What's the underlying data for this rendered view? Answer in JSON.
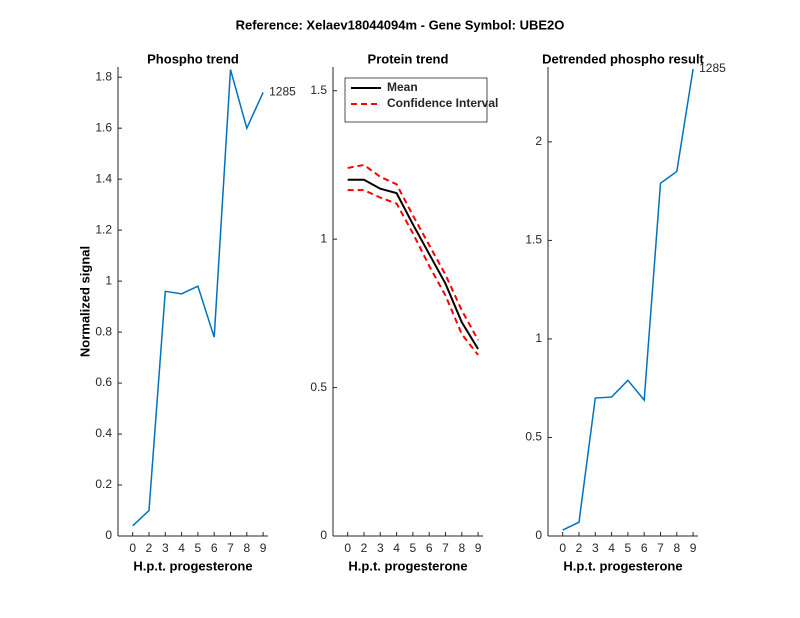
{
  "title": "Reference:  Xelaev18044094m - Gene Symbol:  UBE2O",
  "chart_data": [
    {
      "type": "line",
      "title": "Phospho trend",
      "xlabel": "H.p.t. progesterone",
      "ylabel": "Normalized signal",
      "categories": [
        "0",
        "2",
        "3",
        "4",
        "5",
        "6",
        "7",
        "8",
        "9"
      ],
      "series": [
        {
          "name": "1285",
          "color": "#0072bd",
          "values": [
            0.04,
            0.1,
            0.96,
            0.95,
            0.98,
            0.78,
            1.83,
            1.6,
            1.74
          ]
        }
      ],
      "annotation": "1285",
      "ylim": [
        0,
        1.84
      ],
      "yticks": [
        0,
        0.2,
        0.4,
        0.6,
        0.8,
        1,
        1.2,
        1.4,
        1.6,
        1.8
      ]
    },
    {
      "type": "line",
      "title": "Protein trend",
      "xlabel": "H.p.t. progesterone",
      "categories": [
        "0",
        "2",
        "3",
        "4",
        "5",
        "6",
        "7",
        "8",
        "9"
      ],
      "series": [
        {
          "name": "Mean",
          "color": "#000000",
          "values": [
            1.2,
            1.2,
            1.17,
            1.155,
            1.05,
            0.95,
            0.85,
            0.72,
            0.63
          ]
        },
        {
          "name": "Confidence Interval",
          "color": "#ff0000",
          "dashed": true,
          "values": [
            1.24,
            1.25,
            1.21,
            1.185,
            1.08,
            0.98,
            0.88,
            0.76,
            0.66
          ],
          "lower": [
            1.165,
            1.165,
            1.14,
            1.12,
            1.02,
            0.91,
            0.81,
            0.68,
            0.61
          ]
        }
      ],
      "legend": "upper left",
      "ylim": [
        0,
        1.58
      ],
      "yticks": [
        0,
        0.5,
        1,
        1.5
      ]
    },
    {
      "type": "line",
      "title": "Detrended phospho result",
      "xlabel": "H.p.t. progesterone",
      "categories": [
        "0",
        "2",
        "3",
        "4",
        "5",
        "6",
        "7",
        "8",
        "9"
      ],
      "series": [
        {
          "name": "1285",
          "color": "#0072bd",
          "values": [
            0.03,
            0.07,
            0.7,
            0.705,
            0.79,
            0.69,
            1.79,
            1.85,
            2.37
          ]
        }
      ],
      "annotation": "1285",
      "ylim": [
        0,
        2.38
      ],
      "yticks": [
        0,
        0.5,
        1,
        1.5,
        2
      ]
    }
  ]
}
